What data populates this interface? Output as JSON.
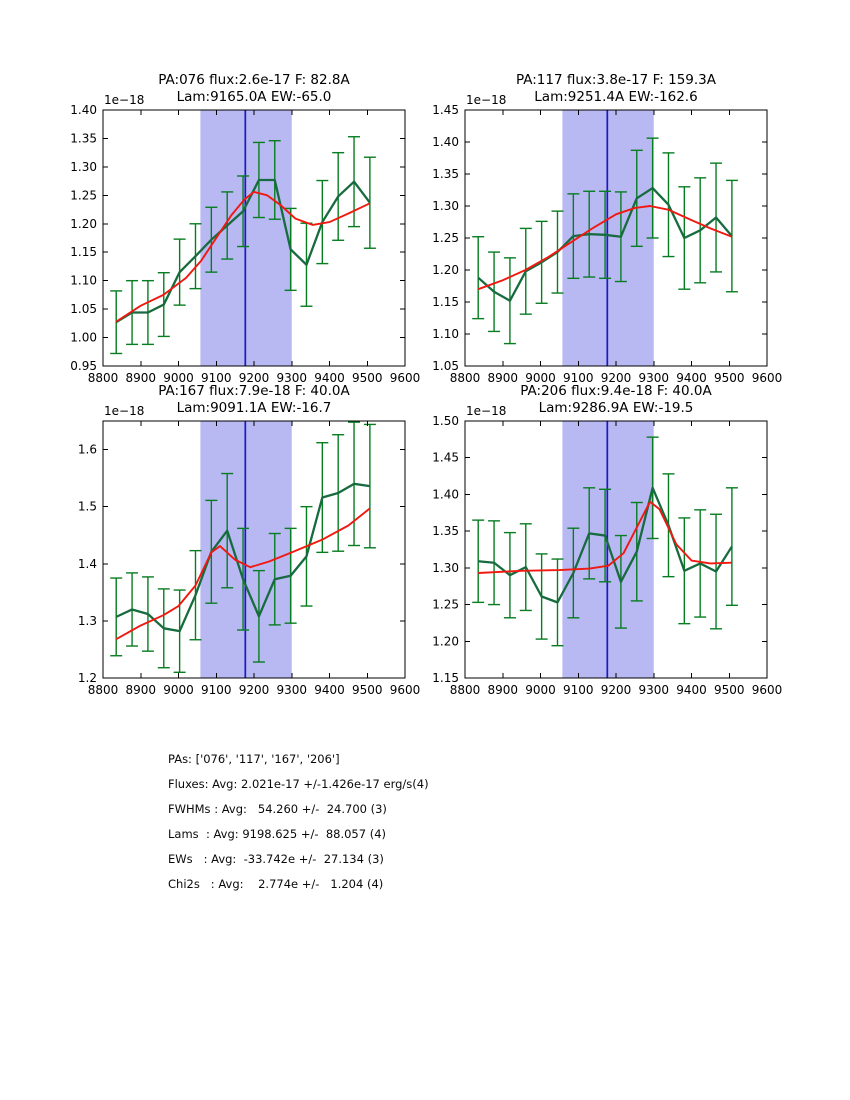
{
  "figure": {
    "background": "#ffffff",
    "colors": {
      "band": "#b8b8f3",
      "center_line": "#1a1ac2",
      "errorbar": "#077d21",
      "spectrum": "#176b3e",
      "fit": "#f01810",
      "axis": "#000000"
    }
  },
  "chart_data": [
    {
      "type": "line",
      "title": "PA:076 flux:2.6e-17 F: 82.8A",
      "subtitle": "Lam:9165.0A EW:-65.0",
      "offset_label": "1e−18",
      "xlim": [
        8800,
        9600
      ],
      "ylim": [
        0.95,
        1.4
      ],
      "xticks": [
        8800,
        8900,
        9000,
        9100,
        9200,
        9300,
        9400,
        9500,
        9600
      ],
      "yticks": [
        0.95,
        1.0,
        1.05,
        1.1,
        1.15,
        1.2,
        1.25,
        1.3,
        1.35,
        1.4
      ],
      "ytick_labels": [
        "0.95",
        "1.00",
        "1.05",
        "1.10",
        "1.15",
        "1.20",
        "1.25",
        "1.30",
        "1.35",
        "1.40"
      ],
      "band": [
        9058,
        9300
      ],
      "center_line": 9177,
      "x": [
        8835,
        8877,
        8919,
        8961,
        9003,
        9045,
        9087,
        9129,
        9171,
        9213,
        9255,
        9297,
        9339,
        9381,
        9423,
        9465,
        9507
      ],
      "y": [
        1.027,
        1.044,
        1.044,
        1.058,
        1.115,
        1.143,
        1.172,
        1.197,
        1.222,
        1.277,
        1.277,
        1.155,
        1.128,
        1.203,
        1.248,
        1.274,
        1.237
      ],
      "yerr": [
        0.055,
        0.056,
        0.056,
        0.056,
        0.058,
        0.057,
        0.057,
        0.059,
        0.062,
        0.066,
        0.069,
        0.072,
        0.073,
        0.073,
        0.077,
        0.079,
        0.08
      ],
      "fit_x": [
        8835,
        8900,
        8960,
        9020,
        9060,
        9100,
        9140,
        9175,
        9200,
        9235,
        9270,
        9310,
        9355,
        9400,
        9450,
        9507
      ],
      "fit_y": [
        1.028,
        1.056,
        1.075,
        1.105,
        1.135,
        1.175,
        1.215,
        1.243,
        1.256,
        1.25,
        1.233,
        1.209,
        1.198,
        1.203,
        1.218,
        1.236
      ]
    },
    {
      "type": "line",
      "title": "PA:117 flux:3.8e-17 F: 159.3A",
      "subtitle": "Lam:9251.4A EW:-162.6",
      "offset_label": "1e−18",
      "xlim": [
        8800,
        9600
      ],
      "ylim": [
        1.05,
        1.45
      ],
      "xticks": [
        8800,
        8900,
        9000,
        9100,
        9200,
        9300,
        9400,
        9500,
        9600
      ],
      "yticks": [
        1.05,
        1.1,
        1.15,
        1.2,
        1.25,
        1.3,
        1.35,
        1.4,
        1.45
      ],
      "ytick_labels": [
        "1.05",
        "1.10",
        "1.15",
        "1.20",
        "1.25",
        "1.30",
        "1.35",
        "1.40",
        "1.45"
      ],
      "band": [
        9058,
        9300
      ],
      "center_line": 9177,
      "x": [
        8835,
        8877,
        8919,
        8961,
        9003,
        9045,
        9087,
        9129,
        9171,
        9213,
        9255,
        9297,
        9339,
        9381,
        9423,
        9465,
        9507
      ],
      "y": [
        1.188,
        1.166,
        1.152,
        1.198,
        1.212,
        1.228,
        1.253,
        1.256,
        1.255,
        1.252,
        1.312,
        1.328,
        1.302,
        1.25,
        1.262,
        1.282,
        1.253
      ],
      "yerr": [
        0.064,
        0.062,
        0.067,
        0.067,
        0.064,
        0.064,
        0.066,
        0.067,
        0.068,
        0.07,
        0.075,
        0.078,
        0.081,
        0.08,
        0.082,
        0.085,
        0.087
      ],
      "fit_x": [
        8835,
        8900,
        8960,
        9020,
        9080,
        9140,
        9200,
        9250,
        9290,
        9340,
        9400,
        9450,
        9507
      ],
      "fit_y": [
        1.17,
        1.184,
        1.2,
        1.22,
        1.243,
        1.266,
        1.287,
        1.297,
        1.3,
        1.294,
        1.278,
        1.265,
        1.252
      ]
    },
    {
      "type": "line",
      "title": "PA:167 flux:7.9e-18 F: 40.0A",
      "subtitle": "Lam:9091.1A EW:-16.7",
      "offset_label": "1e−18",
      "xlim": [
        8800,
        9600
      ],
      "ylim": [
        1.2,
        1.65
      ],
      "xticks": [
        8800,
        8900,
        9000,
        9100,
        9200,
        9300,
        9400,
        9500,
        9600
      ],
      "yticks": [
        1.2,
        1.3,
        1.4,
        1.5,
        1.6
      ],
      "ytick_labels": [
        "1.2",
        "1.3",
        "1.4",
        "1.5",
        "1.6"
      ],
      "band": [
        9058,
        9300
      ],
      "center_line": 9177,
      "x": [
        8835,
        8877,
        8919,
        8961,
        9003,
        9045,
        9087,
        9129,
        9171,
        9213,
        9255,
        9297,
        9339,
        9381,
        9423,
        9465,
        9507
      ],
      "y": [
        1.307,
        1.32,
        1.312,
        1.287,
        1.282,
        1.345,
        1.421,
        1.458,
        1.373,
        1.308,
        1.373,
        1.379,
        1.413,
        1.516,
        1.524,
        1.54,
        1.536
      ],
      "yerr": [
        0.068,
        0.064,
        0.065,
        0.069,
        0.072,
        0.078,
        0.09,
        0.1,
        0.089,
        0.08,
        0.08,
        0.083,
        0.087,
        0.096,
        0.102,
        0.108,
        0.108
      ],
      "fit_x": [
        8835,
        8900,
        8960,
        9000,
        9045,
        9087,
        9110,
        9150,
        9190,
        9240,
        9300,
        9380,
        9450,
        9507
      ],
      "fit_y": [
        1.268,
        1.292,
        1.31,
        1.326,
        1.362,
        1.42,
        1.431,
        1.407,
        1.394,
        1.404,
        1.42,
        1.442,
        1.467,
        1.497
      ]
    },
    {
      "type": "line",
      "title": "PA:206 flux:9.4e-18 F: 40.0A",
      "subtitle": "Lam:9286.9A EW:-19.5",
      "offset_label": "1e−18",
      "xlim": [
        8800,
        9600
      ],
      "ylim": [
        1.15,
        1.5
      ],
      "xticks": [
        8800,
        8900,
        9000,
        9100,
        9200,
        9300,
        9400,
        9500,
        9600
      ],
      "yticks": [
        1.15,
        1.2,
        1.25,
        1.3,
        1.35,
        1.4,
        1.45,
        1.5
      ],
      "ytick_labels": [
        "1.15",
        "1.20",
        "1.25",
        "1.30",
        "1.35",
        "1.40",
        "1.45",
        "1.50"
      ],
      "band": [
        9058,
        9300
      ],
      "center_line": 9177,
      "x": [
        8835,
        8877,
        8919,
        8961,
        9003,
        9045,
        9087,
        9129,
        9171,
        9213,
        9255,
        9297,
        9339,
        9381,
        9423,
        9465,
        9507
      ],
      "y": [
        1.309,
        1.307,
        1.29,
        1.301,
        1.261,
        1.253,
        1.293,
        1.347,
        1.344,
        1.281,
        1.322,
        1.409,
        1.358,
        1.296,
        1.306,
        1.295,
        1.329
      ],
      "yerr": [
        0.056,
        0.057,
        0.058,
        0.059,
        0.058,
        0.059,
        0.061,
        0.062,
        0.063,
        0.063,
        0.067,
        0.069,
        0.07,
        0.072,
        0.073,
        0.078,
        0.08
      ],
      "fit_x": [
        8835,
        8950,
        9050,
        9130,
        9180,
        9220,
        9260,
        9290,
        9315,
        9360,
        9400,
        9450,
        9507
      ],
      "fit_y": [
        1.293,
        1.296,
        1.297,
        1.299,
        1.303,
        1.32,
        1.36,
        1.39,
        1.38,
        1.332,
        1.31,
        1.306,
        1.307
      ]
    }
  ],
  "stats_lines": [
    "PAs: ['076', '117', '167', '206']",
    "Fluxes: Avg: 2.021e-17 +/-1.426e-17 erg/s(4)",
    "FWHMs : Avg:   54.260 +/-  24.700 (3)",
    "Lams  : Avg: 9198.625 +/-  88.057 (4)",
    "EWs   : Avg:  -33.742e +/-  27.134 (3)",
    "Chi2s   : Avg:    2.774e +/-   1.204 (4)"
  ]
}
